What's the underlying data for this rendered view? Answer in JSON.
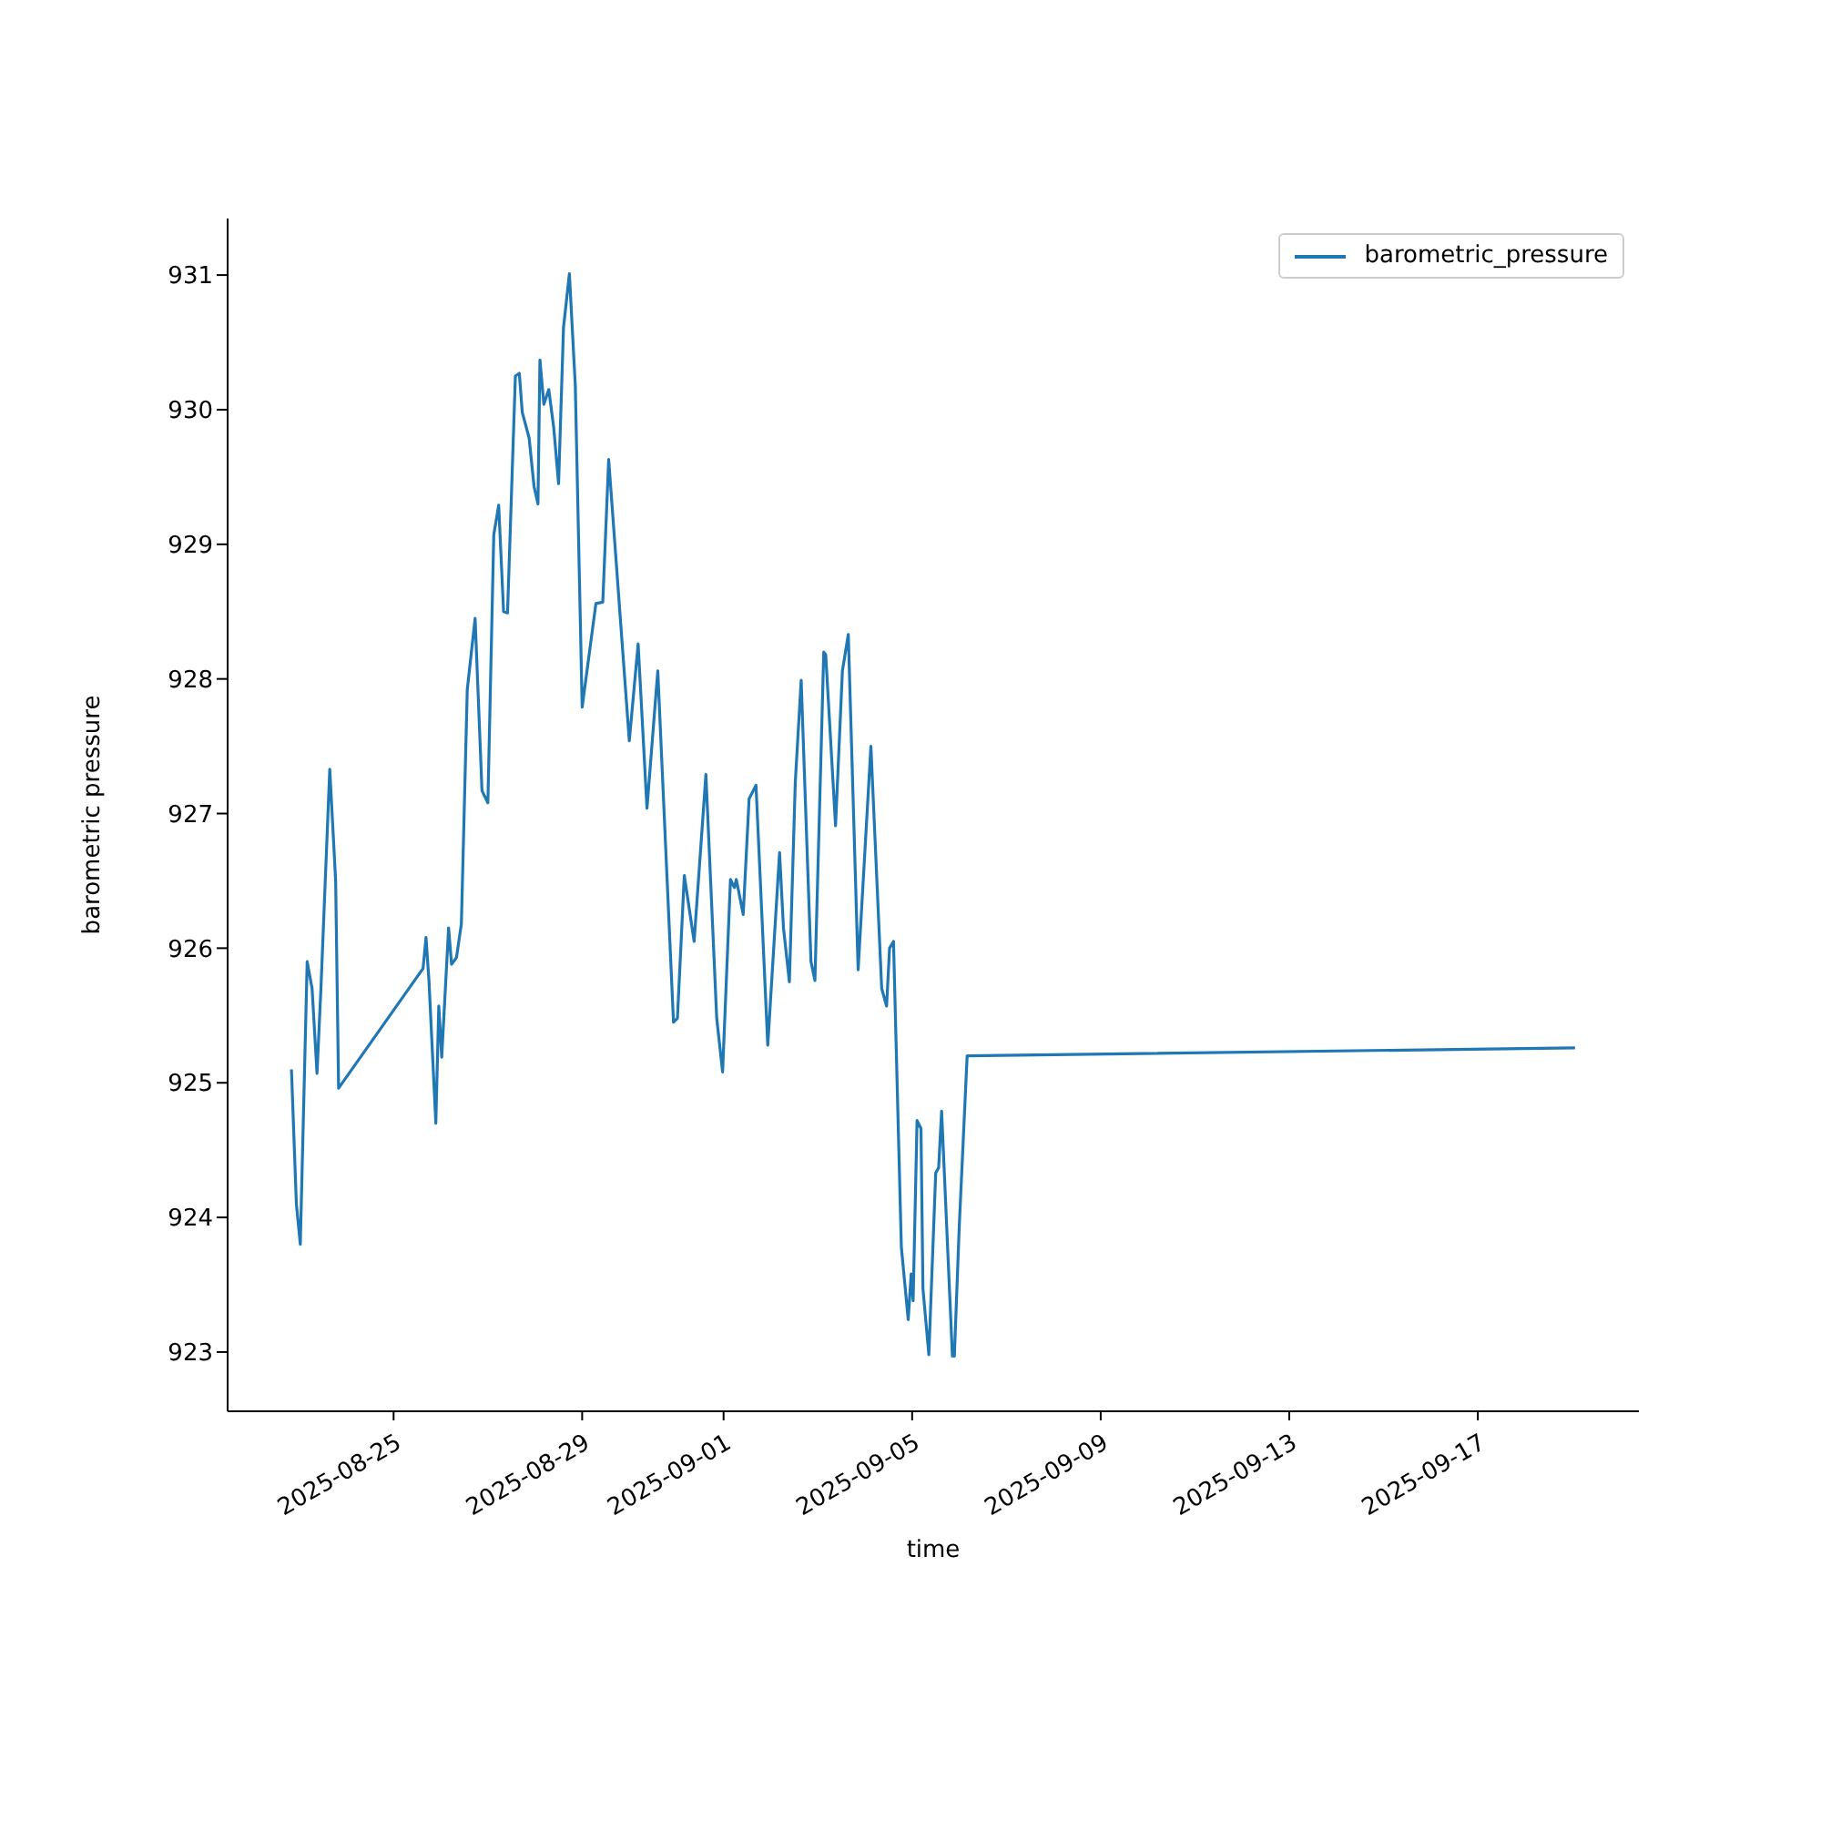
{
  "chart_data": {
    "type": "line",
    "xlabel": "time",
    "ylabel": "barometric pressure",
    "x": [
      "2025-08-22T20:00",
      "2025-08-22T22:30",
      "2025-08-23T00:30",
      "2025-08-23T04:00",
      "2025-08-23T06:30",
      "2025-08-23T09:00",
      "2025-08-23T11:00",
      "2025-08-23T15:30",
      "2025-08-23T18:30",
      "2025-08-23T20:00",
      "2025-08-25T15:00",
      "2025-08-25T16:30",
      "2025-08-25T18:00",
      "2025-08-25T21:30",
      "2025-08-25T23:00",
      "2025-08-26T00:30",
      "2025-08-26T04:00",
      "2025-08-26T05:30",
      "2025-08-26T08:00",
      "2025-08-26T10:30",
      "2025-08-26T13:30",
      "2025-08-26T17:30",
      "2025-08-26T21:00",
      "2025-08-27T00:00",
      "2025-08-27T03:00",
      "2025-08-27T05:30",
      "2025-08-27T08:00",
      "2025-08-27T10:00",
      "2025-08-27T14:00",
      "2025-08-27T16:00",
      "2025-08-27T17:30",
      "2025-08-27T21:00",
      "2025-08-27T23:30",
      "2025-08-28T01:30",
      "2025-08-28T02:30",
      "2025-08-28T04:30",
      "2025-08-28T07:00",
      "2025-08-28T09:30",
      "2025-08-28T12:00",
      "2025-08-28T14:30",
      "2025-08-28T17:30",
      "2025-08-28T20:30",
      "2025-08-29T00:00",
      "2025-08-29T07:00",
      "2025-08-29T10:30",
      "2025-08-29T13:30",
      "2025-08-30T00:00",
      "2025-08-30T04:30",
      "2025-08-30T09:00",
      "2025-08-30T14:30",
      "2025-08-30T22:30",
      "2025-08-31T00:30",
      "2025-08-31T04:00",
      "2025-08-31T09:00",
      "2025-08-31T15:00",
      "2025-08-31T20:30",
      "2025-08-31T23:30",
      "2025-09-01T03:30",
      "2025-09-01T05:30",
      "2025-09-01T06:30",
      "2025-09-01T10:00",
      "2025-09-01T13:00",
      "2025-09-01T16:30",
      "2025-09-01T22:30",
      "2025-09-02T04:30",
      "2025-09-02T06:30",
      "2025-09-02T09:30",
      "2025-09-02T12:30",
      "2025-09-02T15:30",
      "2025-09-02T20:30",
      "2025-09-02T22:30",
      "2025-09-03T03:00",
      "2025-09-03T04:00",
      "2025-09-03T09:00",
      "2025-09-03T12:30",
      "2025-09-03T15:30",
      "2025-09-03T20:30",
      "2025-09-04T03:00",
      "2025-09-04T08:30",
      "2025-09-04T11:00",
      "2025-09-04T12:30",
      "2025-09-04T14:30",
      "2025-09-04T18:30",
      "2025-09-04T22:00",
      "2025-09-04T23:30",
      "2025-09-05T00:30",
      "2025-09-05T02:30",
      "2025-09-05T04:30",
      "2025-09-05T05:30",
      "2025-09-05T08:30",
      "2025-09-05T12:00",
      "2025-09-05T13:30",
      "2025-09-05T15:00",
      "2025-09-05T20:30",
      "2025-09-05T21:30",
      "2025-09-06T00:00",
      "2025-09-06T04:00",
      "2025-09-19T01:30"
    ],
    "series": [
      {
        "name": "barometric_pressure",
        "color": "#1f77b4",
        "values": [
          925.1,
          924.1,
          923.8,
          925.9,
          925.7,
          925.07,
          925.7,
          927.33,
          926.5,
          924.96,
          925.85,
          926.08,
          925.76,
          924.7,
          925.57,
          925.19,
          926.15,
          925.88,
          925.93,
          926.18,
          927.92,
          928.45,
          927.17,
          927.08,
          929.07,
          929.29,
          928.5,
          928.49,
          930.25,
          930.27,
          929.98,
          929.79,
          929.43,
          929.3,
          930.37,
          930.04,
          930.15,
          929.87,
          929.45,
          930.61,
          931.01,
          930.18,
          927.79,
          928.56,
          928.57,
          929.63,
          927.54,
          928.26,
          927.04,
          928.06,
          925.45,
          925.48,
          926.54,
          926.05,
          927.29,
          925.48,
          925.08,
          926.51,
          926.45,
          926.51,
          926.25,
          927.11,
          927.21,
          925.28,
          926.71,
          926.15,
          925.75,
          927.23,
          927.99,
          925.9,
          925.76,
          928.2,
          928.18,
          926.91,
          928.06,
          928.33,
          925.84,
          927.5,
          925.7,
          925.57,
          926.0,
          926.05,
          923.78,
          923.24,
          923.58,
          923.38,
          924.72,
          924.66,
          923.47,
          922.98,
          924.33,
          924.37,
          924.79,
          922.97,
          922.97,
          923.94,
          925.2,
          925.26
        ]
      }
    ],
    "xlim": [
      "2025-08-21T11:30",
      "2025-09-20T10:00"
    ],
    "xticks": [
      "2025-08-25",
      "2025-08-29",
      "2025-09-01",
      "2025-09-05",
      "2025-09-09",
      "2025-09-13",
      "2025-09-17"
    ],
    "ylim": [
      922.56,
      931.42
    ],
    "yticks": [
      923,
      924,
      925,
      926,
      927,
      928,
      929,
      930,
      931
    ],
    "grid": false,
    "legend": "top right",
    "marker": "none",
    "line_style": "solid"
  }
}
